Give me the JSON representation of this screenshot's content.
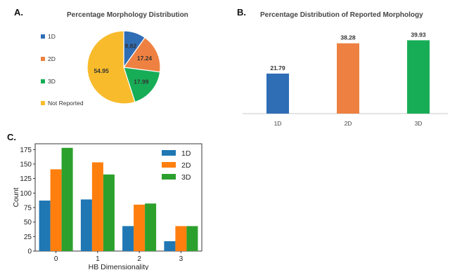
{
  "panels": {
    "a": {
      "letter": "A.",
      "title": "Percentage Morphology Distribution"
    },
    "b": {
      "letter": "B.",
      "title": "Percentage Distribution of Reported Morphology"
    },
    "c": {
      "letter": "C."
    }
  },
  "colors": {
    "blue": "#2f6db5",
    "orange": "#ee8141",
    "green": "#17ad57",
    "yellow": "#f8bb2c",
    "c_blue": "#1f77b4",
    "c_orange": "#ff7f0e",
    "c_green": "#2ca02c"
  },
  "chart_data": [
    {
      "type": "pie",
      "title": "Percentage Morphology Distribution",
      "labels": [
        "1D",
        "2D",
        "3D",
        "Not Reported"
      ],
      "values": [
        9.82,
        17.24,
        17.99,
        54.95
      ],
      "value_labels": [
        "9.82",
        "17.24",
        "17.99",
        "54.95"
      ],
      "colors": [
        "#2f6db5",
        "#ee8141",
        "#17ad57",
        "#f8bb2c"
      ],
      "legend": "left"
    },
    {
      "type": "bar",
      "title": "Percentage Distribution of Reported Morphology",
      "categories": [
        "1D",
        "2D",
        "3D"
      ],
      "values": [
        21.79,
        38.28,
        39.93
      ],
      "value_labels": [
        "21.79",
        "38.28",
        "39.93"
      ],
      "colors": [
        "#2f6db5",
        "#ee8141",
        "#17ad57"
      ],
      "ylim": [
        0,
        42
      ],
      "grid": false
    },
    {
      "type": "bar",
      "categories": [
        "0",
        "1",
        "2",
        "3"
      ],
      "series": [
        {
          "name": "1D",
          "values": [
            87,
            89,
            43,
            17
          ]
        },
        {
          "name": "2D",
          "values": [
            141,
            153,
            80,
            43
          ]
        },
        {
          "name": "3D",
          "values": [
            178,
            132,
            82,
            43
          ]
        }
      ],
      "xlabel": "HB Dimensionality",
      "ylabel": "Count",
      "yticks": [
        "0",
        "25",
        "50",
        "75",
        "100",
        "125",
        "150",
        "175"
      ],
      "ylim": [
        0,
        185
      ],
      "legend": "top-right",
      "grid": false
    }
  ]
}
